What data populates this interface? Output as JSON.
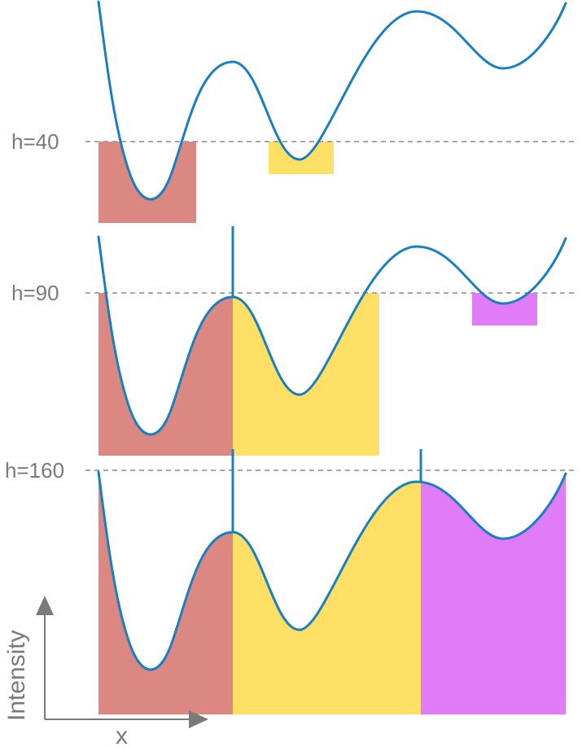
{
  "colors": {
    "curve": "#1a7fc1",
    "dam": "#1a7fc1",
    "level_line": "#9a9a9a",
    "label": "#7a7a7a",
    "basin_1": "#dc8882",
    "basin_2": "#ffe066",
    "basin_3": "#e07cf7",
    "axis": "#7a7a7a"
  },
  "panels": [
    {
      "level_label": "h=40",
      "level": 40
    },
    {
      "level_label": "h=90",
      "level": 90
    },
    {
      "level_label": "h=160",
      "level": 160
    }
  ],
  "axes": {
    "y_label": "Intensity",
    "x_label": "x"
  }
}
